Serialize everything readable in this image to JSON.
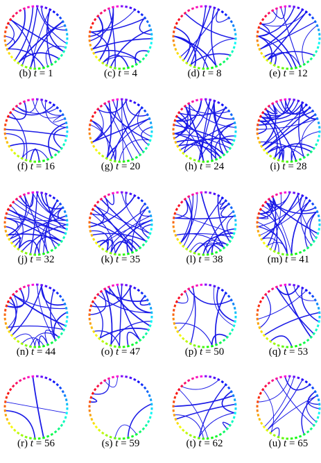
{
  "figure": {
    "nodes_per_circle": 44,
    "colors": {
      "edge": "#1a1ae6",
      "ring_hue_start": 270,
      "ring_hue_span": 330
    },
    "panels": [
      {
        "label": "(b)",
        "t_symbol": "t",
        "eq": "=",
        "value": "1",
        "edges": 18
      },
      {
        "label": "(c)",
        "t_symbol": "t",
        "eq": "=",
        "value": "4",
        "edges": 15
      },
      {
        "label": "(d)",
        "t_symbol": "t",
        "eq": "=",
        "value": "8",
        "edges": 12
      },
      {
        "label": "(e)",
        "t_symbol": "t",
        "eq": "=",
        "value": "12",
        "edges": 16
      },
      {
        "label": "(f)",
        "t_symbol": "t",
        "eq": "=",
        "value": "16",
        "edges": 18
      },
      {
        "label": "(g)",
        "t_symbol": "t",
        "eq": "=",
        "value": "20",
        "edges": 20
      },
      {
        "label": "(h)",
        "t_symbol": "t",
        "eq": "=",
        "value": "24",
        "edges": 30
      },
      {
        "label": "(i)",
        "t_symbol": "t",
        "eq": "=",
        "value": "28",
        "edges": 34
      },
      {
        "label": "(j)",
        "t_symbol": "t",
        "eq": "=",
        "value": "32",
        "edges": 30
      },
      {
        "label": "(k)",
        "t_symbol": "t",
        "eq": "=",
        "value": "35",
        "edges": 26
      },
      {
        "label": "(l)",
        "t_symbol": "t",
        "eq": "=",
        "value": "38",
        "edges": 24
      },
      {
        "label": "(m)",
        "t_symbol": "t",
        "eq": "=",
        "value": "41",
        "edges": 28
      },
      {
        "label": "(n)",
        "t_symbol": "t",
        "eq": "=",
        "value": "44",
        "edges": 20
      },
      {
        "label": "(o)",
        "t_symbol": "t",
        "eq": "=",
        "value": "47",
        "edges": 16
      },
      {
        "label": "(p)",
        "t_symbol": "t",
        "eq": "=",
        "value": "50",
        "edges": 9
      },
      {
        "label": "(q)",
        "t_symbol": "t",
        "eq": "=",
        "value": "53",
        "edges": 9
      },
      {
        "label": "(r)",
        "t_symbol": "t",
        "eq": "=",
        "value": "56",
        "edges": 3
      },
      {
        "label": "(s)",
        "t_symbol": "t",
        "eq": "=",
        "value": "59",
        "edges": 5
      },
      {
        "label": "(t)",
        "t_symbol": "t",
        "eq": "=",
        "value": "62",
        "edges": 9
      },
      {
        "label": "(u)",
        "t_symbol": "t",
        "eq": "=",
        "value": "65",
        "edges": 12
      }
    ]
  }
}
